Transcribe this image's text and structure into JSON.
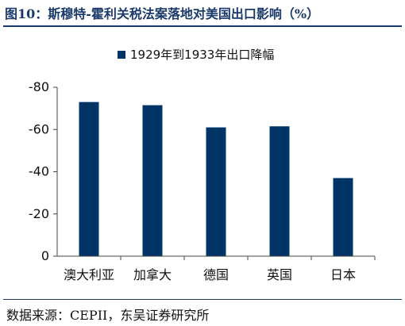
{
  "figure_title": "图10：斯穆特-霍利关税法案落地对美国出口影响（%）",
  "source_note": "数据来源：CEPII，东吴证券研究所",
  "colors": {
    "bar": "#003466",
    "title": "#1a3a6b"
  },
  "chart_data": {
    "type": "bar",
    "categories": [
      "澳大利亚",
      "加拿大",
      "德国",
      "英国",
      "日本"
    ],
    "series": [
      {
        "name": "1929年到1933年出口降幅",
        "values": [
          -73,
          -71.5,
          -61,
          -61.5,
          -37
        ]
      }
    ],
    "yticks": [
      -80,
      -60,
      -40,
      -20,
      0
    ],
    "ylim": [
      0,
      -80
    ],
    "y_axis_inverted": true,
    "legend_position": "top-center",
    "grid": false
  }
}
